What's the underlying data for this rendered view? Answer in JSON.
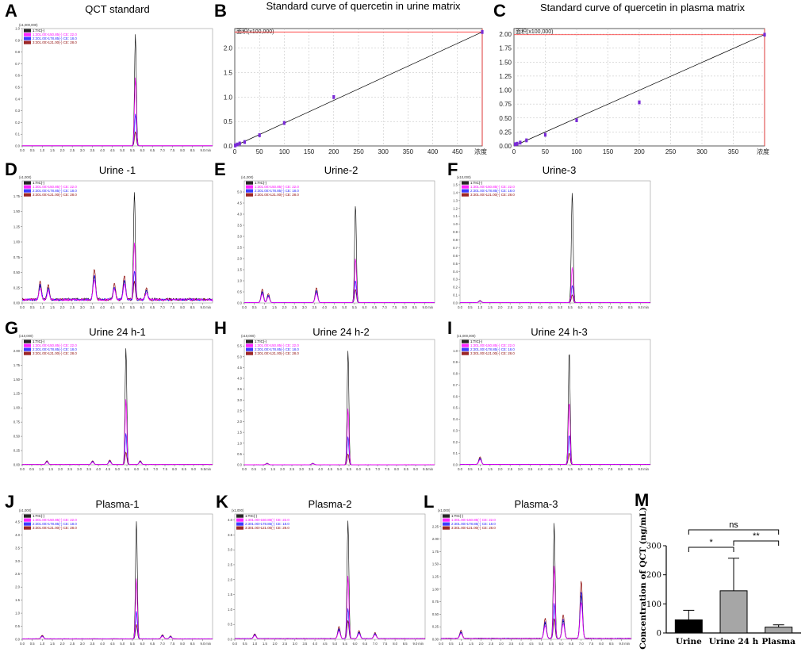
{
  "figure_label": "Chromatography figure — quercetin (QCT) detection",
  "chart_data": [
    {
      "panel": "A",
      "type": "line",
      "title": "QCT standard",
      "y_scale_label": "(x1,000,000)",
      "ylim": [
        0,
        1.0
      ],
      "yticks": [
        0.0,
        0.1,
        0.2,
        0.3,
        0.4,
        0.5,
        0.6,
        0.7,
        0.8,
        0.9,
        1.0
      ],
      "xlim": [
        0,
        9.5
      ],
      "xticks": [
        0.0,
        0.5,
        1.0,
        1.5,
        2.0,
        2.5,
        3.0,
        3.5,
        4.0,
        4.5,
        5.0,
        5.5,
        6.0,
        6.5,
        7.0,
        7.5,
        8.0,
        8.5,
        9.0
      ],
      "xunit": "min",
      "legend": [
        "1:TIC(-)",
        "1:301.00>150.85(-) CE: 22.0",
        "2:301.00>178.85(-) CE: 18.0",
        "3:301.00>121.00(-) CE: 28.0"
      ],
      "peak_rt": 5.65,
      "series": [
        {
          "name": "TIC",
          "peak": 0.95
        },
        {
          "name": "301.00>150.85",
          "peak": 0.58
        },
        {
          "name": "301.00>178.85",
          "peak": 0.27
        },
        {
          "name": "301.00>121.00",
          "peak": 0.12
        }
      ],
      "noise": 0.005,
      "noise_until": 0,
      "extra_peaks": []
    },
    {
      "panel": "B",
      "type": "scatter",
      "title": "Standard curve of quercetin in urine matrix",
      "y_scale_label": "面积(x100,000)",
      "x_unit_label": "浓度",
      "xlim": [
        0,
        500
      ],
      "xticks": [
        0,
        50,
        100,
        150,
        200,
        250,
        300,
        350,
        400,
        450
      ],
      "ylim": [
        0,
        2.4
      ],
      "yticks": [
        0.0,
        0.5,
        1.0,
        1.5,
        2.0
      ],
      "x": [
        1,
        5,
        10,
        20,
        50,
        100,
        200,
        500
      ],
      "y": [
        0.01,
        0.03,
        0.05,
        0.08,
        0.22,
        0.47,
        1.0,
        2.33
      ],
      "fit": {
        "slope": 0.00466,
        "intercept": 0.0
      },
      "guide": {
        "x": 500,
        "y": 2.33
      }
    },
    {
      "panel": "C",
      "type": "scatter",
      "title": "Standard curve of quercetin in plasma matrix",
      "y_scale_label": "面积(x100,000)",
      "x_unit_label": "浓度",
      "xlim": [
        0,
        400
      ],
      "xticks": [
        0,
        50,
        100,
        150,
        200,
        250,
        300,
        350
      ],
      "ylim": [
        0,
        2.1
      ],
      "yticks": [
        0.0,
        0.25,
        0.5,
        0.75,
        1.0,
        1.25,
        1.5,
        1.75,
        2.0
      ],
      "x": [
        2,
        5,
        10,
        20,
        50,
        100,
        200,
        400
      ],
      "y": [
        0.03,
        0.04,
        0.06,
        0.1,
        0.2,
        0.46,
        0.78,
        1.99
      ],
      "fit": {
        "slope": 0.00498,
        "intercept": 0.0
      },
      "guide": {
        "x": 400,
        "y": 1.99
      }
    },
    {
      "panel": "D",
      "type": "line",
      "title": "Urine -1",
      "y_scale_label": "(x1,000)",
      "ylim": [
        0,
        2.0
      ],
      "yticks": [
        0.0,
        0.25,
        0.5,
        0.75,
        1.0,
        1.25,
        1.5,
        1.75
      ],
      "xlim": [
        0,
        9.5
      ],
      "xticks": [
        0.0,
        0.5,
        1.0,
        1.5,
        2.0,
        2.5,
        3.0,
        3.5,
        4.0,
        4.5,
        5.0,
        5.5,
        6.0,
        6.5,
        7.0,
        7.5,
        8.0,
        8.5,
        9.0
      ],
      "xunit": "min",
      "legend": [
        "1:TIC(-)",
        "1:301.00>150.85(-) CE: 22.0",
        "2:301.00>178.85(-) CE: 18.0",
        "3:301.00>121.00(-) CE: 28.0"
      ],
      "peak_rt": 5.6,
      "series": [
        {
          "name": "TIC",
          "peak": 1.75
        },
        {
          "name": "301.00>150.85",
          "peak": 0.95
        },
        {
          "name": "301.00>178.85",
          "peak": 0.48
        },
        {
          "name": "301.00>121.00",
          "peak": 0.3
        }
      ],
      "noise": 0.09,
      "noise_until": 9.5,
      "extra_peaks": [
        {
          "rt": 0.9,
          "h": 0.22
        },
        {
          "rt": 1.3,
          "h": 0.18
        },
        {
          "rt": 3.6,
          "h": 0.38
        },
        {
          "rt": 4.6,
          "h": 0.2
        },
        {
          "rt": 5.1,
          "h": 0.3
        },
        {
          "rt": 6.2,
          "h": 0.14
        }
      ]
    },
    {
      "panel": "E",
      "type": "line",
      "title": "Urine-2",
      "y_scale_label": "(x1,000)",
      "ylim": [
        0,
        5.5
      ],
      "yticks": [
        0.0,
        0.5,
        1.0,
        1.5,
        2.0,
        2.5,
        3.0,
        3.5,
        4.0,
        4.5,
        5.0
      ],
      "xlim": [
        0,
        9.5
      ],
      "xticks": [
        0.0,
        0.5,
        1.0,
        1.5,
        2.0,
        2.5,
        3.0,
        3.5,
        4.0,
        4.5,
        5.0,
        5.5,
        6.0,
        6.5,
        7.0,
        7.5,
        8.0,
        8.5,
        9.0
      ],
      "xunit": "min",
      "legend": [
        "1:TIC(-)",
        "1:301.00>150.85(-) CE: 22.0",
        "2:301.00>178.85(-) CE: 18.0",
        "3:301.00>121.00(-) CE: 28.0"
      ],
      "peak_rt": 5.55,
      "series": [
        {
          "name": "TIC",
          "peak": 4.4
        },
        {
          "name": "301.00>150.85",
          "peak": 2.0
        },
        {
          "name": "301.00>178.85",
          "peak": 1.0
        },
        {
          "name": "301.00>121.00",
          "peak": 0.6
        }
      ],
      "noise": 0.03,
      "noise_until": 9.5,
      "extra_peaks": [
        {
          "rt": 0.9,
          "h": 0.45
        },
        {
          "rt": 1.2,
          "h": 0.3
        },
        {
          "rt": 3.6,
          "h": 0.5
        }
      ]
    },
    {
      "panel": "F",
      "type": "line",
      "title": "Urine-3",
      "y_scale_label": "(x10,000)",
      "ylim": [
        0,
        1.55
      ],
      "yticks": [
        0.0,
        0.1,
        0.2,
        0.3,
        0.4,
        0.5,
        0.6,
        0.7,
        0.8,
        0.9,
        1.0,
        1.1,
        1.2,
        1.3,
        1.4,
        1.5
      ],
      "xlim": [
        0,
        9.5
      ],
      "xticks": [
        0.0,
        0.5,
        1.0,
        1.5,
        2.0,
        2.5,
        3.0,
        3.5,
        4.0,
        4.5,
        5.0,
        5.5,
        6.0,
        6.5,
        7.0,
        7.5,
        8.0,
        8.5,
        9.0
      ],
      "xunit": "min",
      "legend": [
        "1:TIC(-)",
        "1:301.00>150.85(-) CE: 22.0",
        "2:301.00>178.85(-) CE: 18.0",
        "3:301.00>121.00(-) CE: 28.0"
      ],
      "peak_rt": 5.6,
      "series": [
        {
          "name": "TIC",
          "peak": 1.4
        },
        {
          "name": "301.00>150.85",
          "peak": 0.45
        },
        {
          "name": "301.00>178.85",
          "peak": 0.22
        },
        {
          "name": "301.00>121.00",
          "peak": 0.1
        }
      ],
      "noise": 0.008,
      "noise_until": 9.5,
      "extra_peaks": [
        {
          "rt": 1.0,
          "h": 0.02
        }
      ]
    },
    {
      "panel": "G",
      "type": "line",
      "title": "Urine 24 h-1",
      "y_scale_label": "(x10,000)",
      "ylim": [
        0,
        2.2
      ],
      "yticks": [
        0.0,
        0.25,
        0.5,
        0.75,
        1.0,
        1.25,
        1.5,
        1.75,
        2.0,
        2.25
      ],
      "xlim": [
        0,
        10
      ],
      "xticks": [
        0.0,
        0.5,
        1.0,
        1.5,
        2.0,
        2.5,
        3.0,
        3.5,
        4.0,
        4.5,
        5.0,
        5.5,
        6.0,
        6.5,
        7.0,
        7.5,
        8.0,
        8.5,
        9.0,
        9.5
      ],
      "xunit": "min",
      "legend": [
        "1:TIC(-)",
        "1:301.00>150.85(-) CE: 22.0",
        "2:301.00>178.85(-) CE: 18.0",
        "3:301.00>121.00(-) CE: 28.0"
      ],
      "peak_rt": 5.45,
      "series": [
        {
          "name": "TIC",
          "peak": 2.05
        },
        {
          "name": "301.00>150.85",
          "peak": 1.15
        },
        {
          "name": "301.00>178.85",
          "peak": 0.55
        },
        {
          "name": "301.00>121.00",
          "peak": 0.22
        }
      ],
      "noise": 0.008,
      "noise_until": 10,
      "extra_peaks": [
        {
          "rt": 1.3,
          "h": 0.05
        },
        {
          "rt": 3.7,
          "h": 0.05
        },
        {
          "rt": 4.6,
          "h": 0.06
        },
        {
          "rt": 6.2,
          "h": 0.05
        }
      ]
    },
    {
      "panel": "H",
      "type": "line",
      "title": "Urine 24 h-2",
      "y_scale_label": "(x10,000)",
      "ylim": [
        0,
        5.8
      ],
      "yticks": [
        0.0,
        0.5,
        1.0,
        1.5,
        2.0,
        2.5,
        3.0,
        3.5,
        4.0,
        4.5,
        5.0,
        5.5
      ],
      "xlim": [
        0,
        10
      ],
      "xticks": [
        0.0,
        0.5,
        1.0,
        1.5,
        2.0,
        2.5,
        3.0,
        3.5,
        4.0,
        4.5,
        5.0,
        5.5,
        6.0,
        6.5,
        7.0,
        7.5,
        8.0,
        8.5,
        9.0,
        9.5
      ],
      "xunit": "min",
      "legend": [
        "1:TIC(-)",
        "1:301.00>150.85(-) CE: 22.0",
        "2:301.00>178.85(-) CE: 18.0",
        "3:301.00>121.00(-) CE: 28.0"
      ],
      "peak_rt": 5.45,
      "series": [
        {
          "name": "TIC",
          "peak": 5.3
        },
        {
          "name": "301.00>150.85",
          "peak": 2.6
        },
        {
          "name": "301.00>178.85",
          "peak": 1.3
        },
        {
          "name": "301.00>121.00",
          "peak": 0.5
        }
      ],
      "noise": 0.01,
      "noise_until": 10,
      "extra_peaks": [
        {
          "rt": 1.2,
          "h": 0.05
        },
        {
          "rt": 3.6,
          "h": 0.05
        }
      ]
    },
    {
      "panel": "I",
      "type": "line",
      "title": "Urine 24 h-3",
      "y_scale_label": "(x1,000,000)",
      "ylim": [
        0,
        1.1
      ],
      "yticks": [
        0.0,
        0.1,
        0.2,
        0.3,
        0.4,
        0.5,
        0.6,
        0.7,
        0.8,
        0.9,
        1.0
      ],
      "xlim": [
        0,
        9.5
      ],
      "xticks": [
        0.0,
        0.5,
        1.0,
        1.5,
        2.0,
        2.5,
        3.0,
        3.5,
        4.0,
        4.5,
        5.0,
        5.5,
        6.0,
        6.5,
        7.0,
        7.5,
        8.0,
        8.5,
        9.0
      ],
      "xunit": "min",
      "legend": [
        "1:TIC(-)",
        "1:301.00>150.85(-) CE: 22.0",
        "2:301.00>178.85(-) CE: 18.0",
        "3:301.00>121.00(-) CE: 28.0"
      ],
      "peak_rt": 5.45,
      "series": [
        {
          "name": "TIC",
          "peak": 1.0
        },
        {
          "name": "301.00>150.85",
          "peak": 0.55
        },
        {
          "name": "301.00>178.85",
          "peak": 0.26
        },
        {
          "name": "301.00>121.00",
          "peak": 0.1
        }
      ],
      "noise": 0.006,
      "noise_until": 9.5,
      "extra_peaks": [
        {
          "rt": 1.0,
          "h": 0.05
        }
      ]
    },
    {
      "panel": "J",
      "type": "line",
      "title": "Plasma-1",
      "y_scale_label": "(x1,000)",
      "ylim": [
        0,
        4.8
      ],
      "yticks": [
        0.0,
        0.5,
        1.0,
        1.5,
        2.0,
        2.5,
        3.0,
        3.5,
        4.0,
        4.5
      ],
      "xlim": [
        0,
        9.5
      ],
      "xticks": [
        0.0,
        0.5,
        1.0,
        1.5,
        2.0,
        2.5,
        3.0,
        3.5,
        4.0,
        4.5,
        5.0,
        5.5,
        6.0,
        6.5,
        7.0,
        7.5,
        8.0,
        8.5,
        9.0
      ],
      "xunit": "min",
      "legend": [
        "1:TIC(-)",
        "1:301.00>150.85(-) CE: 22.0",
        "2:301.00>178.85(-) CE: 18.0",
        "3:301.00>121.00(-) CE: 28.0"
      ],
      "peak_rt": 5.7,
      "series": [
        {
          "name": "TIC",
          "peak": 4.5
        },
        {
          "name": "301.00>150.85",
          "peak": 2.3
        },
        {
          "name": "301.00>178.85",
          "peak": 1.05
        },
        {
          "name": "301.00>121.00",
          "peak": 0.55
        }
      ],
      "noise": 0.03,
      "noise_until": 9.5,
      "extra_peaks": [
        {
          "rt": 1.0,
          "h": 0.1
        },
        {
          "rt": 7.0,
          "h": 0.12
        },
        {
          "rt": 7.4,
          "h": 0.08
        }
      ]
    },
    {
      "panel": "K",
      "type": "line",
      "title": "Plasma-2",
      "y_scale_label": "(x1,000)",
      "ylim": [
        0,
        4.2
      ],
      "yticks": [
        0.0,
        0.5,
        1.0,
        1.5,
        2.0,
        2.5,
        3.0,
        3.5,
        4.0
      ],
      "xlim": [
        0,
        9.5
      ],
      "xticks": [
        0.0,
        0.5,
        1.0,
        1.5,
        2.0,
        2.5,
        3.0,
        3.5,
        4.0,
        4.5,
        5.0,
        5.5,
        6.0,
        6.5,
        7.0,
        7.5,
        8.0,
        8.5,
        9.0
      ],
      "xunit": "min",
      "legend": [
        "1:TIC(-)",
        "1:301.00>150.85(-) CE: 22.0",
        "2:301.00>178.85(-) CE: 18.0",
        "3:301.00>121.00(-) CE: 28.0"
      ],
      "peak_rt": 5.65,
      "series": [
        {
          "name": "TIC",
          "peak": 3.95
        },
        {
          "name": "301.00>150.85",
          "peak": 2.1
        },
        {
          "name": "301.00>178.85",
          "peak": 1.0
        },
        {
          "name": "301.00>121.00",
          "peak": 0.6
        }
      ],
      "noise": 0.04,
      "noise_until": 9.5,
      "extra_peaks": [
        {
          "rt": 1.0,
          "h": 0.12
        },
        {
          "rt": 5.2,
          "h": 0.3
        },
        {
          "rt": 6.2,
          "h": 0.2
        },
        {
          "rt": 7.0,
          "h": 0.15
        }
      ]
    },
    {
      "panel": "L",
      "type": "line",
      "title": "Plasma-3",
      "y_scale_label": "(x1,000)",
      "ylim": [
        0,
        2.5
      ],
      "yticks": [
        0.0,
        0.25,
        0.5,
        0.75,
        1.0,
        1.25,
        1.5,
        1.75,
        2.0,
        2.25
      ],
      "xlim": [
        0,
        9.5
      ],
      "xticks": [
        0.0,
        0.5,
        1.0,
        1.5,
        2.0,
        2.5,
        3.0,
        3.5,
        4.0,
        4.5,
        5.0,
        5.5,
        6.0,
        6.5,
        7.0,
        7.5,
        8.0,
        8.5,
        9.0
      ],
      "xunit": "min",
      "legend": [
        "1:TIC(-)",
        "1:301.00>150.85(-) CE: 22.0",
        "2:301.00>178.85(-) CE: 18.0",
        "3:301.00>121.00(-) CE: 28.0"
      ],
      "peak_rt": 5.65,
      "series": [
        {
          "name": "TIC",
          "peak": 2.3
        },
        {
          "name": "301.00>150.85",
          "peak": 1.45
        },
        {
          "name": "301.00>178.85",
          "peak": 0.7
        },
        {
          "name": "301.00>121.00",
          "peak": 0.4
        }
      ],
      "noise": 0.03,
      "noise_until": 9.5,
      "extra_peaks": [
        {
          "rt": 1.0,
          "h": 0.12
        },
        {
          "rt": 5.2,
          "h": 0.3
        },
        {
          "rt": 6.1,
          "h": 0.35
        },
        {
          "rt": 7.0,
          "h": 0.85
        }
      ]
    },
    {
      "panel": "M",
      "type": "bar",
      "title": "",
      "categories": [
        "Urine",
        "Urine 24 h",
        "Plasma"
      ],
      "values": [
        45,
        145,
        20
      ],
      "errors": [
        33,
        112,
        8
      ],
      "bar_colors": [
        "#000000",
        "#a6a6a6",
        "#a6a6a6"
      ],
      "ylabel": "Concentration of QCT (ng/mL)",
      "ylim": [
        0,
        300
      ],
      "yticks": [
        0,
        100,
        200,
        300
      ],
      "significance": [
        {
          "from": 0,
          "to": 2,
          "label": "ns"
        },
        {
          "from": 0,
          "to": 1,
          "label": "*"
        },
        {
          "from": 1,
          "to": 2,
          "label": "**"
        }
      ]
    }
  ],
  "series_colors": {
    "TIC": "#000000",
    "301.00>150.85": "#ff00ff",
    "301.00>178.85": "#1a1aff",
    "301.00>121.00": "#8b0000"
  },
  "cal_colors": {
    "fit": "#000000",
    "points": "#7a2bd6",
    "guide": "#ff3030"
  }
}
